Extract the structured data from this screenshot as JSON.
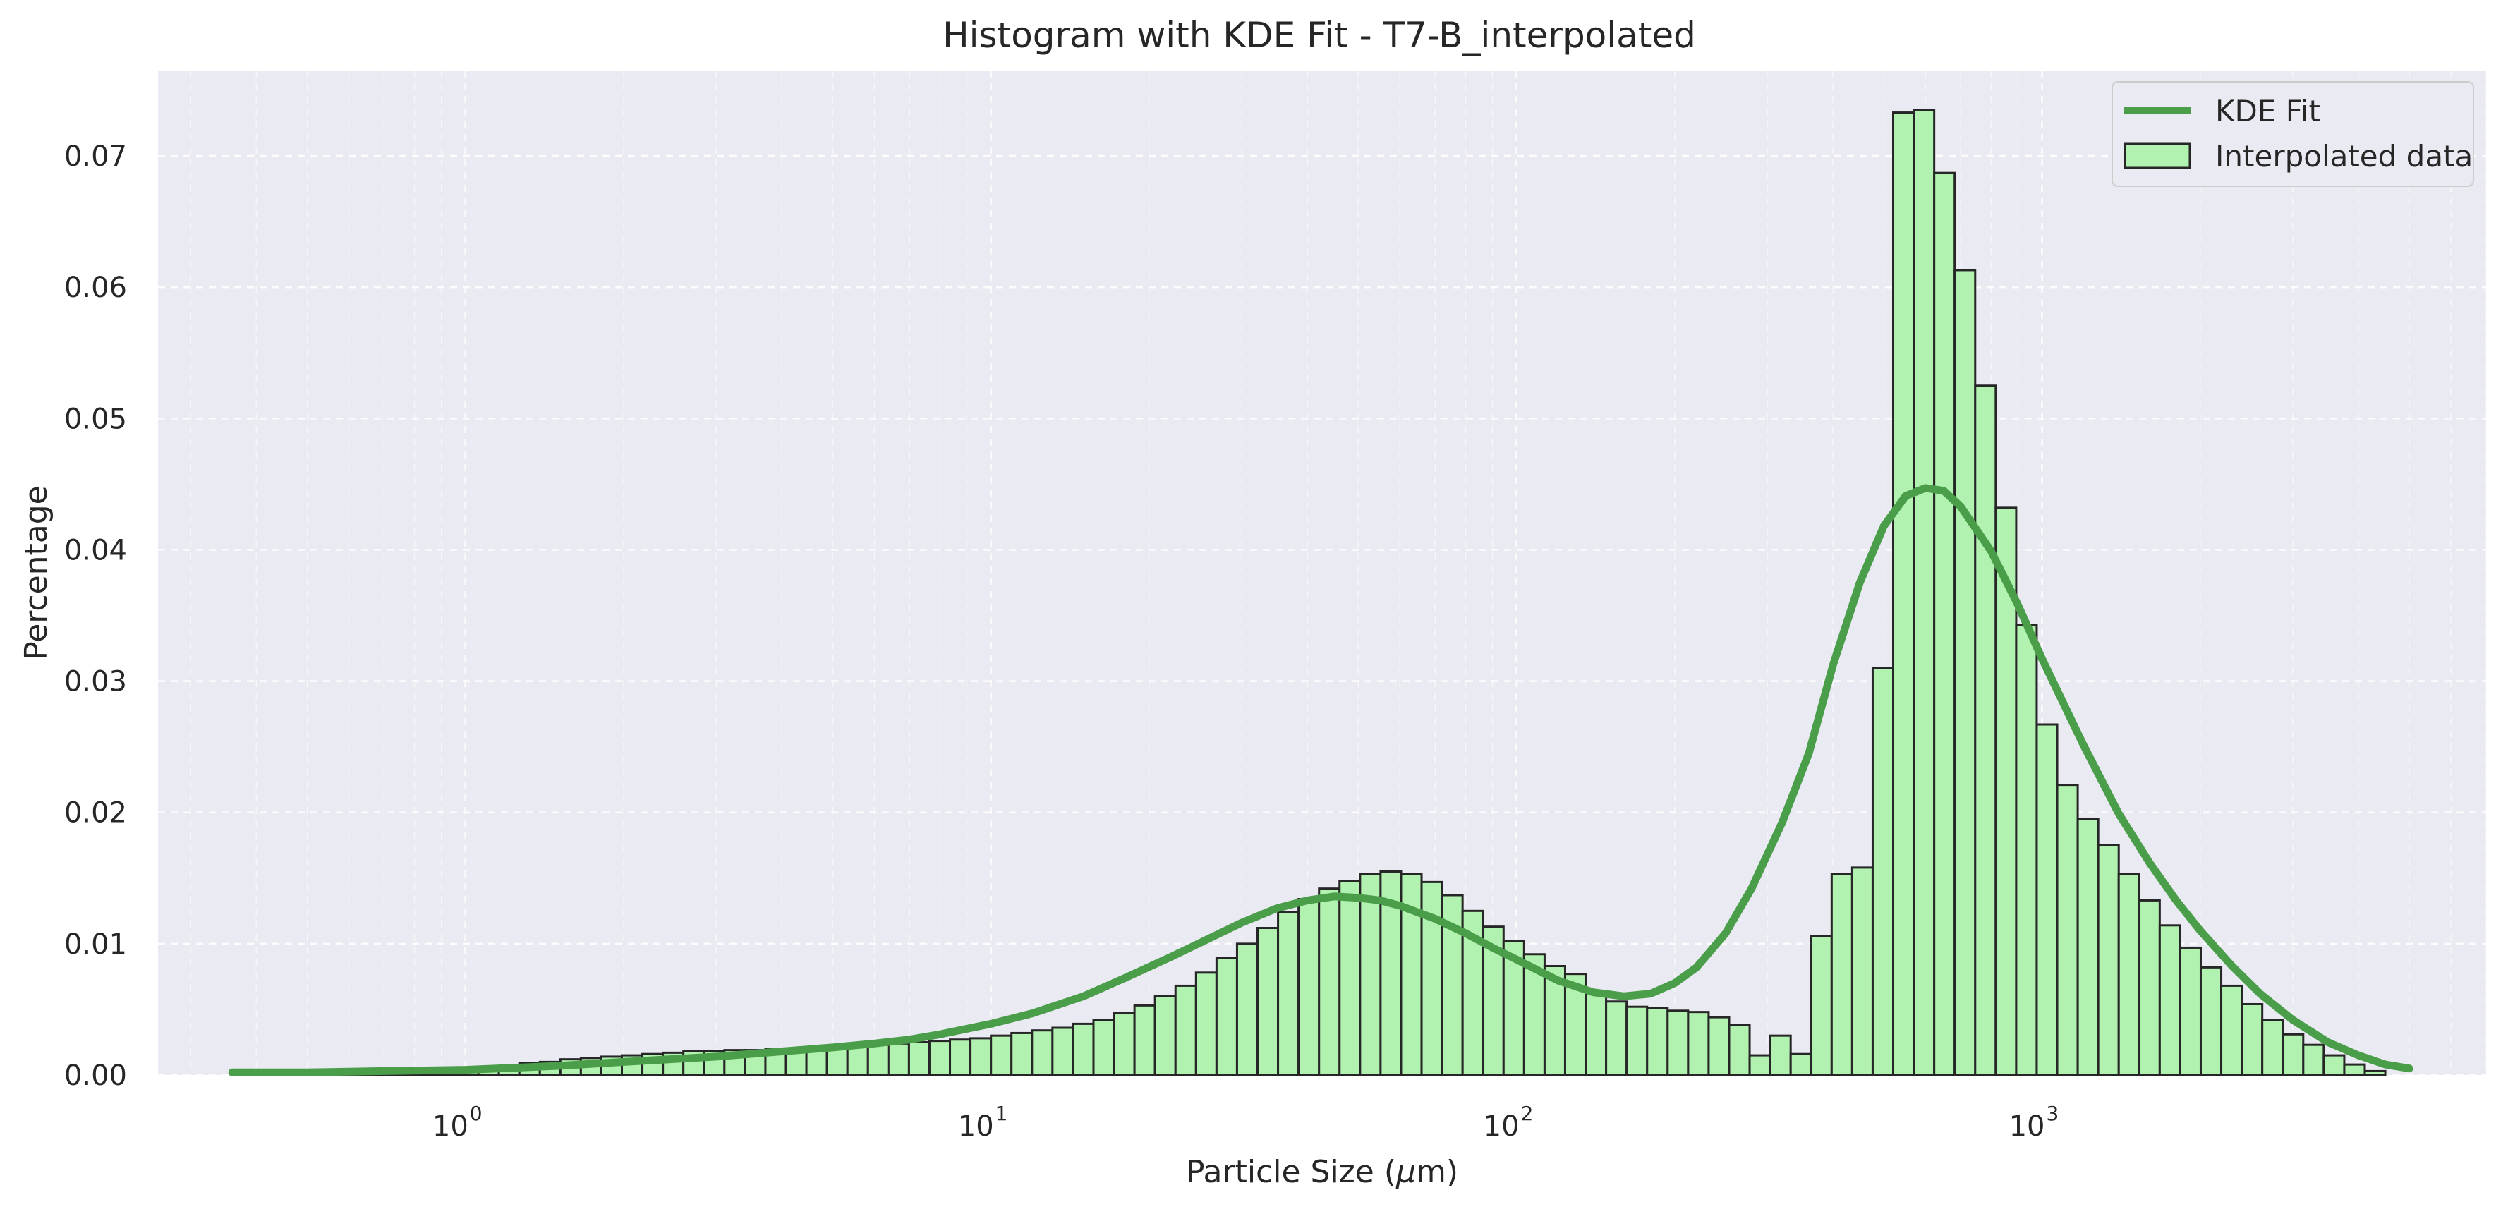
{
  "chart_data": {
    "type": "bar",
    "title": "Histogram with KDE Fit - T7-B_interpolated",
    "xlabel_pre": "Particle Size (",
    "xlabel_mu": "μ",
    "xlabel_post": "m)",
    "ylabel": "Percentage",
    "x_scale": "log",
    "xlim": [
      0.26,
      7000.0
    ],
    "ylim": [
      0,
      0.0765
    ],
    "grid": true,
    "legend_position": "top-right",
    "colors": {
      "background": "#eaeaf2",
      "grid": "#ffffff",
      "bar_fill": "#b2f2b0",
      "bar_edge": "#262626",
      "kde_line": "#4a9e4a"
    },
    "x_ticks": [
      {
        "base": "10",
        "exp": "0",
        "value": 1
      },
      {
        "base": "10",
        "exp": "1",
        "value": 10
      },
      {
        "base": "10",
        "exp": "2",
        "value": 100
      },
      {
        "base": "10",
        "exp": "3",
        "value": 1000
      }
    ],
    "y_ticks": [
      {
        "label": "0.00",
        "value": 0.0
      },
      {
        "label": "0.01",
        "value": 0.01
      },
      {
        "label": "0.02",
        "value": 0.02
      },
      {
        "label": "0.03",
        "value": 0.03
      },
      {
        "label": "0.04",
        "value": 0.04
      },
      {
        "label": "0.05",
        "value": 0.05
      },
      {
        "label": "0.06",
        "value": 0.06
      },
      {
        "label": "0.07",
        "value": 0.07
      }
    ],
    "series": [
      {
        "name": "Interpolated data",
        "kind": "histogram",
        "bin_range": [
          0.36,
          4500
        ],
        "values": [
          0.0002,
          0.0002,
          0.0002,
          0.0003,
          0.0003,
          0.0003,
          0.0003,
          0.0003,
          0.0004,
          0.0004,
          0.0005,
          0.0005,
          0.0006,
          0.0007,
          0.0009,
          0.001,
          0.0012,
          0.0013,
          0.0014,
          0.0015,
          0.0016,
          0.0017,
          0.0018,
          0.0018,
          0.0019,
          0.0019,
          0.002,
          0.002,
          0.0021,
          0.0021,
          0.0022,
          0.0023,
          0.0024,
          0.0025,
          0.0026,
          0.0027,
          0.0028,
          0.003,
          0.0032,
          0.0034,
          0.0036,
          0.0039,
          0.0042,
          0.0047,
          0.0053,
          0.006,
          0.0068,
          0.0078,
          0.0089,
          0.01,
          0.0112,
          0.0124,
          0.0134,
          0.0142,
          0.0148,
          0.0153,
          0.0155,
          0.0153,
          0.0147,
          0.0137,
          0.0125,
          0.0113,
          0.0102,
          0.0092,
          0.0083,
          0.0077,
          0.0064,
          0.0056,
          0.0052,
          0.0051,
          0.0049,
          0.0048,
          0.0044,
          0.0038,
          0.0015,
          0.003,
          0.0016,
          0.0106,
          0.0153,
          0.0158,
          0.031,
          0.0733,
          0.0735,
          0.0687,
          0.0613,
          0.0525,
          0.0432,
          0.0343,
          0.0267,
          0.0221,
          0.0195,
          0.0175,
          0.0153,
          0.0133,
          0.0114,
          0.0097,
          0.0082,
          0.0068,
          0.0054,
          0.0042,
          0.0031,
          0.0023,
          0.0015,
          0.0008,
          0.0003
        ]
      },
      {
        "name": "KDE Fit",
        "kind": "line",
        "points": [
          [
            0.36,
            0.0002
          ],
          [
            0.5,
            0.0002
          ],
          [
            0.7,
            0.0003
          ],
          [
            1.0,
            0.0004
          ],
          [
            1.5,
            0.0007
          ],
          [
            2.0,
            0.001
          ],
          [
            3.0,
            0.0014
          ],
          [
            4.0,
            0.0018
          ],
          [
            5.0,
            0.0021
          ],
          [
            6.0,
            0.0024
          ],
          [
            7.0,
            0.0027
          ],
          [
            8.0,
            0.0031
          ],
          [
            10.0,
            0.0039
          ],
          [
            12.0,
            0.0047
          ],
          [
            15.0,
            0.006
          ],
          [
            18.0,
            0.0074
          ],
          [
            22.0,
            0.009
          ],
          [
            26.0,
            0.0104
          ],
          [
            30.0,
            0.0116
          ],
          [
            35.0,
            0.0127
          ],
          [
            40.0,
            0.0133
          ],
          [
            45.0,
            0.0136
          ],
          [
            50.0,
            0.0135
          ],
          [
            55.0,
            0.0133
          ],
          [
            60.0,
            0.0129
          ],
          [
            70.0,
            0.0119
          ],
          [
            80.0,
            0.0108
          ],
          [
            90.0,
            0.0097
          ],
          [
            100.0,
            0.0088
          ],
          [
            120.0,
            0.0072
          ],
          [
            140.0,
            0.0063
          ],
          [
            160.0,
            0.006
          ],
          [
            180.0,
            0.0062
          ],
          [
            200.0,
            0.007
          ],
          [
            220.0,
            0.0082
          ],
          [
            250.0,
            0.0108
          ],
          [
            280.0,
            0.0142
          ],
          [
            320.0,
            0.0192
          ],
          [
            360.0,
            0.0245
          ],
          [
            400.0,
            0.0312
          ],
          [
            450.0,
            0.0375
          ],
          [
            500.0,
            0.0418
          ],
          [
            550.0,
            0.0441
          ],
          [
            600.0,
            0.0447
          ],
          [
            650.0,
            0.0445
          ],
          [
            700.0,
            0.0433
          ],
          [
            800.0,
            0.0399
          ],
          [
            900.0,
            0.0358
          ],
          [
            1000.0,
            0.0317
          ],
          [
            1200.0,
            0.0251
          ],
          [
            1400.0,
            0.0199
          ],
          [
            1600.0,
            0.0162
          ],
          [
            1800.0,
            0.0133
          ],
          [
            2000.0,
            0.011
          ],
          [
            2300.0,
            0.0083
          ],
          [
            2600.0,
            0.0062
          ],
          [
            3000.0,
            0.0042
          ],
          [
            3500.0,
            0.0025
          ],
          [
            4000.0,
            0.0015
          ],
          [
            4500.0,
            0.0008
          ],
          [
            5000.0,
            0.0005
          ]
        ]
      }
    ]
  }
}
